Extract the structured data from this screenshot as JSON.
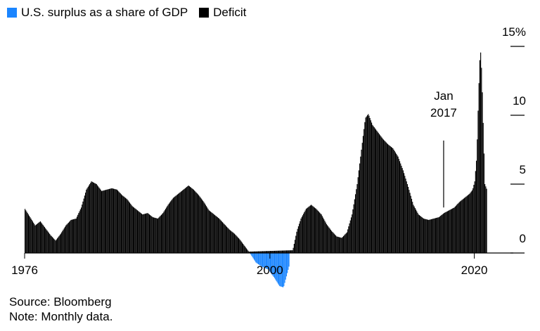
{
  "chart_data": {
    "type": "area",
    "title": "",
    "xlabel": "",
    "ylabel": "",
    "x_range": [
      1976,
      2021.2
    ],
    "ylim": [
      -2.6,
      15
    ],
    "y_ticks": [
      0,
      5,
      10,
      15
    ],
    "y_tick_labels": [
      "0",
      "5",
      "10",
      "15%"
    ],
    "x_ticks": [
      1976,
      2000,
      2020
    ],
    "x_tick_labels": [
      "1976",
      "2000",
      "2020"
    ],
    "y_axis_position": "right",
    "grid": false,
    "legend_position": "top-left",
    "series": [
      {
        "name": "U.S. surplus as a share of GDP",
        "color": "#1a85ff",
        "x": [
          1998.0,
          1998.6,
          1999.2,
          1999.8,
          2000.4,
          2000.9,
          2001.3,
          2001.9
        ],
        "y": [
          0.0,
          -0.7,
          -1.0,
          -1.2,
          -1.8,
          -2.4,
          -2.5,
          -0.8
        ]
      },
      {
        "name": "Deficit",
        "color": "#000000",
        "x": [
          1976.0,
          1976.5,
          1977.0,
          1977.5,
          1978.0,
          1978.5,
          1979.0,
          1979.5,
          1980.0,
          1980.5,
          1981.0,
          1981.5,
          1982.0,
          1982.5,
          1983.0,
          1983.5,
          1984.0,
          1984.5,
          1985.0,
          1985.5,
          1986.0,
          1986.5,
          1987.0,
          1987.5,
          1988.0,
          1988.5,
          1989.0,
          1989.5,
          1990.0,
          1990.5,
          1991.0,
          1991.5,
          1992.0,
          1992.5,
          1993.0,
          1993.5,
          1994.0,
          1994.5,
          1995.0,
          1995.5,
          1996.0,
          1996.5,
          1997.0,
          1997.5,
          1997.9,
          2002.2,
          2002.6,
          2003.0,
          2003.5,
          2004.0,
          2004.5,
          2005.0,
          2005.5,
          2006.0,
          2006.5,
          2007.0,
          2007.5,
          2008.0,
          2008.5,
          2009.0,
          2009.3,
          2009.6,
          2010.0,
          2010.5,
          2011.0,
          2011.5,
          2012.0,
          2012.5,
          2013.0,
          2013.5,
          2014.0,
          2014.5,
          2015.0,
          2015.5,
          2016.0,
          2016.5,
          2017.0,
          2017.5,
          2018.0,
          2018.5,
          2019.0,
          2019.5,
          2019.8,
          2020.0,
          2020.2,
          2020.4,
          2020.55,
          2020.7,
          2020.85,
          2021.0,
          2021.2
        ],
        "y": [
          3.2,
          2.6,
          2.0,
          2.3,
          1.8,
          1.3,
          0.9,
          1.4,
          2.0,
          2.4,
          2.5,
          3.3,
          4.6,
          5.2,
          5.0,
          4.5,
          4.6,
          4.7,
          4.6,
          4.2,
          3.9,
          3.4,
          3.1,
          2.8,
          2.9,
          2.6,
          2.5,
          2.9,
          3.5,
          4.0,
          4.3,
          4.6,
          4.9,
          4.6,
          4.2,
          3.7,
          3.1,
          2.8,
          2.5,
          2.1,
          1.7,
          1.4,
          1.0,
          0.5,
          0.1,
          0.2,
          1.6,
          2.5,
          3.2,
          3.5,
          3.2,
          2.8,
          2.1,
          1.6,
          1.2,
          1.1,
          1.5,
          2.8,
          5.0,
          8.0,
          9.8,
          10.1,
          9.3,
          8.8,
          8.3,
          7.9,
          7.6,
          7.0,
          6.0,
          4.8,
          3.5,
          2.8,
          2.5,
          2.4,
          2.5,
          2.6,
          2.9,
          3.1,
          3.3,
          3.7,
          4.0,
          4.3,
          4.6,
          5.2,
          7.0,
          12.0,
          15.0,
          13.0,
          9.0,
          5.0,
          4.6
        ]
      }
    ],
    "annotations": [
      {
        "text_lines": [
          "Jan",
          "2017"
        ],
        "x": 2017.0,
        "y": 3.1
      }
    ]
  },
  "footnotes": {
    "source": "Source: Bloomberg",
    "note": "Note: Monthly data."
  }
}
